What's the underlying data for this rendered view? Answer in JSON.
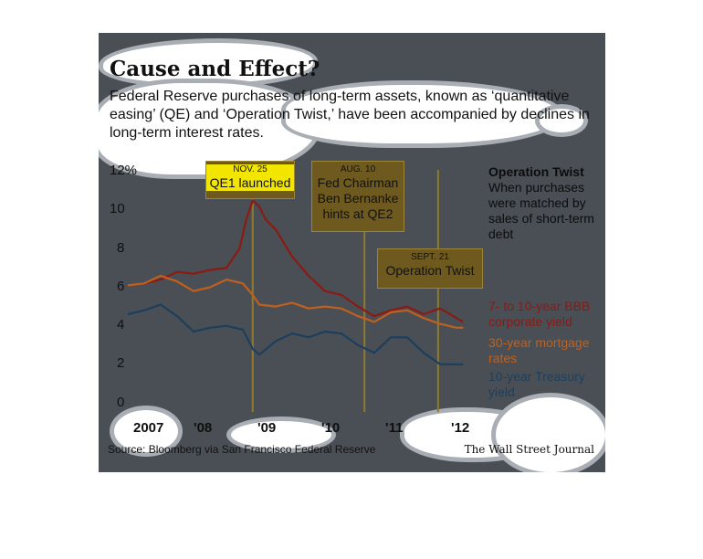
{
  "header": {
    "title": "Cause and Effect?",
    "subtitle": "Federal Reserve purchases of long-term assets, known as ‘quantitative easing’ (QE) and ‘Operation Twist,’ have been accompanied by declines in long-term interest rates."
  },
  "annotations": [
    {
      "date": "NOV. 25",
      "text": "QE1 launched"
    },
    {
      "date": "AUG. 10",
      "text": "Fed Chairman Ben Bernanke hints at QE2"
    },
    {
      "date": "SEPT. 21",
      "text": "Operation Twist"
    }
  ],
  "operation_twist_note": {
    "heading": "Operation Twist",
    "body": "When purchases were matched by sales of short-term debt"
  },
  "legend": [
    {
      "label": "7- to 10-year BBB corporate yield",
      "color": "#8a1a14"
    },
    {
      "label": "30-year mortgage rates",
      "color": "#c0601e"
    },
    {
      "label": "10-year Treasury yield",
      "color": "#1c3f5e"
    }
  ],
  "footer": {
    "source": "Source: Bloomberg via San Francisco Federal Reserve",
    "credit": "The Wall Street Journal"
  },
  "chart_data": {
    "type": "line",
    "title": "Cause and Effect?",
    "ylim": [
      0,
      12
    ],
    "y_ticks": [
      "12%",
      "10",
      "8",
      "6",
      "4",
      "2",
      "0"
    ],
    "x_ticks": [
      "2007",
      "'08",
      "'09",
      "'10",
      "'11",
      "'12"
    ],
    "grid": false,
    "legend_position": "right",
    "event_markers": [
      {
        "label": "NOV. 25 QE1 launched",
        "x": 2008.9
      },
      {
        "label": "AUG. 10 Fed Chairman Ben Bernanke hints at QE2",
        "x": 2010.6
      },
      {
        "label": "SEPT. 21 Operation Twist",
        "x": 2011.72
      }
    ],
    "series": [
      {
        "name": "7- to 10-year BBB corporate yield",
        "color": "#8a1a14",
        "x": [
          2007.0,
          2007.25,
          2007.5,
          2007.75,
          2008.0,
          2008.25,
          2008.5,
          2008.7,
          2008.8,
          2008.9,
          2009.0,
          2009.1,
          2009.25,
          2009.5,
          2009.75,
          2010.0,
          2010.25,
          2010.5,
          2010.75,
          2011.0,
          2011.25,
          2011.5,
          2011.75,
          2012.0,
          2012.1
        ],
        "y": [
          6.1,
          6.2,
          6.4,
          6.8,
          6.7,
          6.9,
          7.0,
          8.0,
          9.5,
          10.5,
          10.2,
          9.5,
          9.0,
          7.6,
          6.6,
          5.8,
          5.6,
          5.0,
          4.5,
          4.8,
          5.0,
          4.6,
          4.9,
          4.4,
          4.2
        ]
      },
      {
        "name": "30-year mortgage rates",
        "color": "#c0601e",
        "x": [
          2007.0,
          2007.25,
          2007.5,
          2007.75,
          2008.0,
          2008.25,
          2008.5,
          2008.75,
          2008.9,
          2009.0,
          2009.25,
          2009.5,
          2009.75,
          2010.0,
          2010.25,
          2010.5,
          2010.75,
          2011.0,
          2011.25,
          2011.5,
          2011.75,
          2012.0,
          2012.1
        ],
        "y": [
          6.1,
          6.2,
          6.6,
          6.3,
          5.8,
          6.0,
          6.4,
          6.2,
          5.6,
          5.1,
          5.0,
          5.2,
          4.9,
          5.0,
          4.9,
          4.5,
          4.2,
          4.7,
          4.8,
          4.4,
          4.1,
          3.9,
          3.9
        ]
      },
      {
        "name": "10-year Treasury yield",
        "color": "#1c3f5e",
        "x": [
          2007.0,
          2007.25,
          2007.5,
          2007.75,
          2008.0,
          2008.25,
          2008.5,
          2008.75,
          2008.9,
          2009.0,
          2009.25,
          2009.5,
          2009.75,
          2010.0,
          2010.25,
          2010.5,
          2010.75,
          2011.0,
          2011.25,
          2011.5,
          2011.75,
          2012.0,
          2012.1
        ],
        "y": [
          4.6,
          4.8,
          5.1,
          4.5,
          3.7,
          3.9,
          4.0,
          3.8,
          2.8,
          2.5,
          3.2,
          3.6,
          3.4,
          3.7,
          3.6,
          3.0,
          2.6,
          3.4,
          3.4,
          2.6,
          2.0,
          2.0,
          2.0
        ]
      }
    ]
  }
}
